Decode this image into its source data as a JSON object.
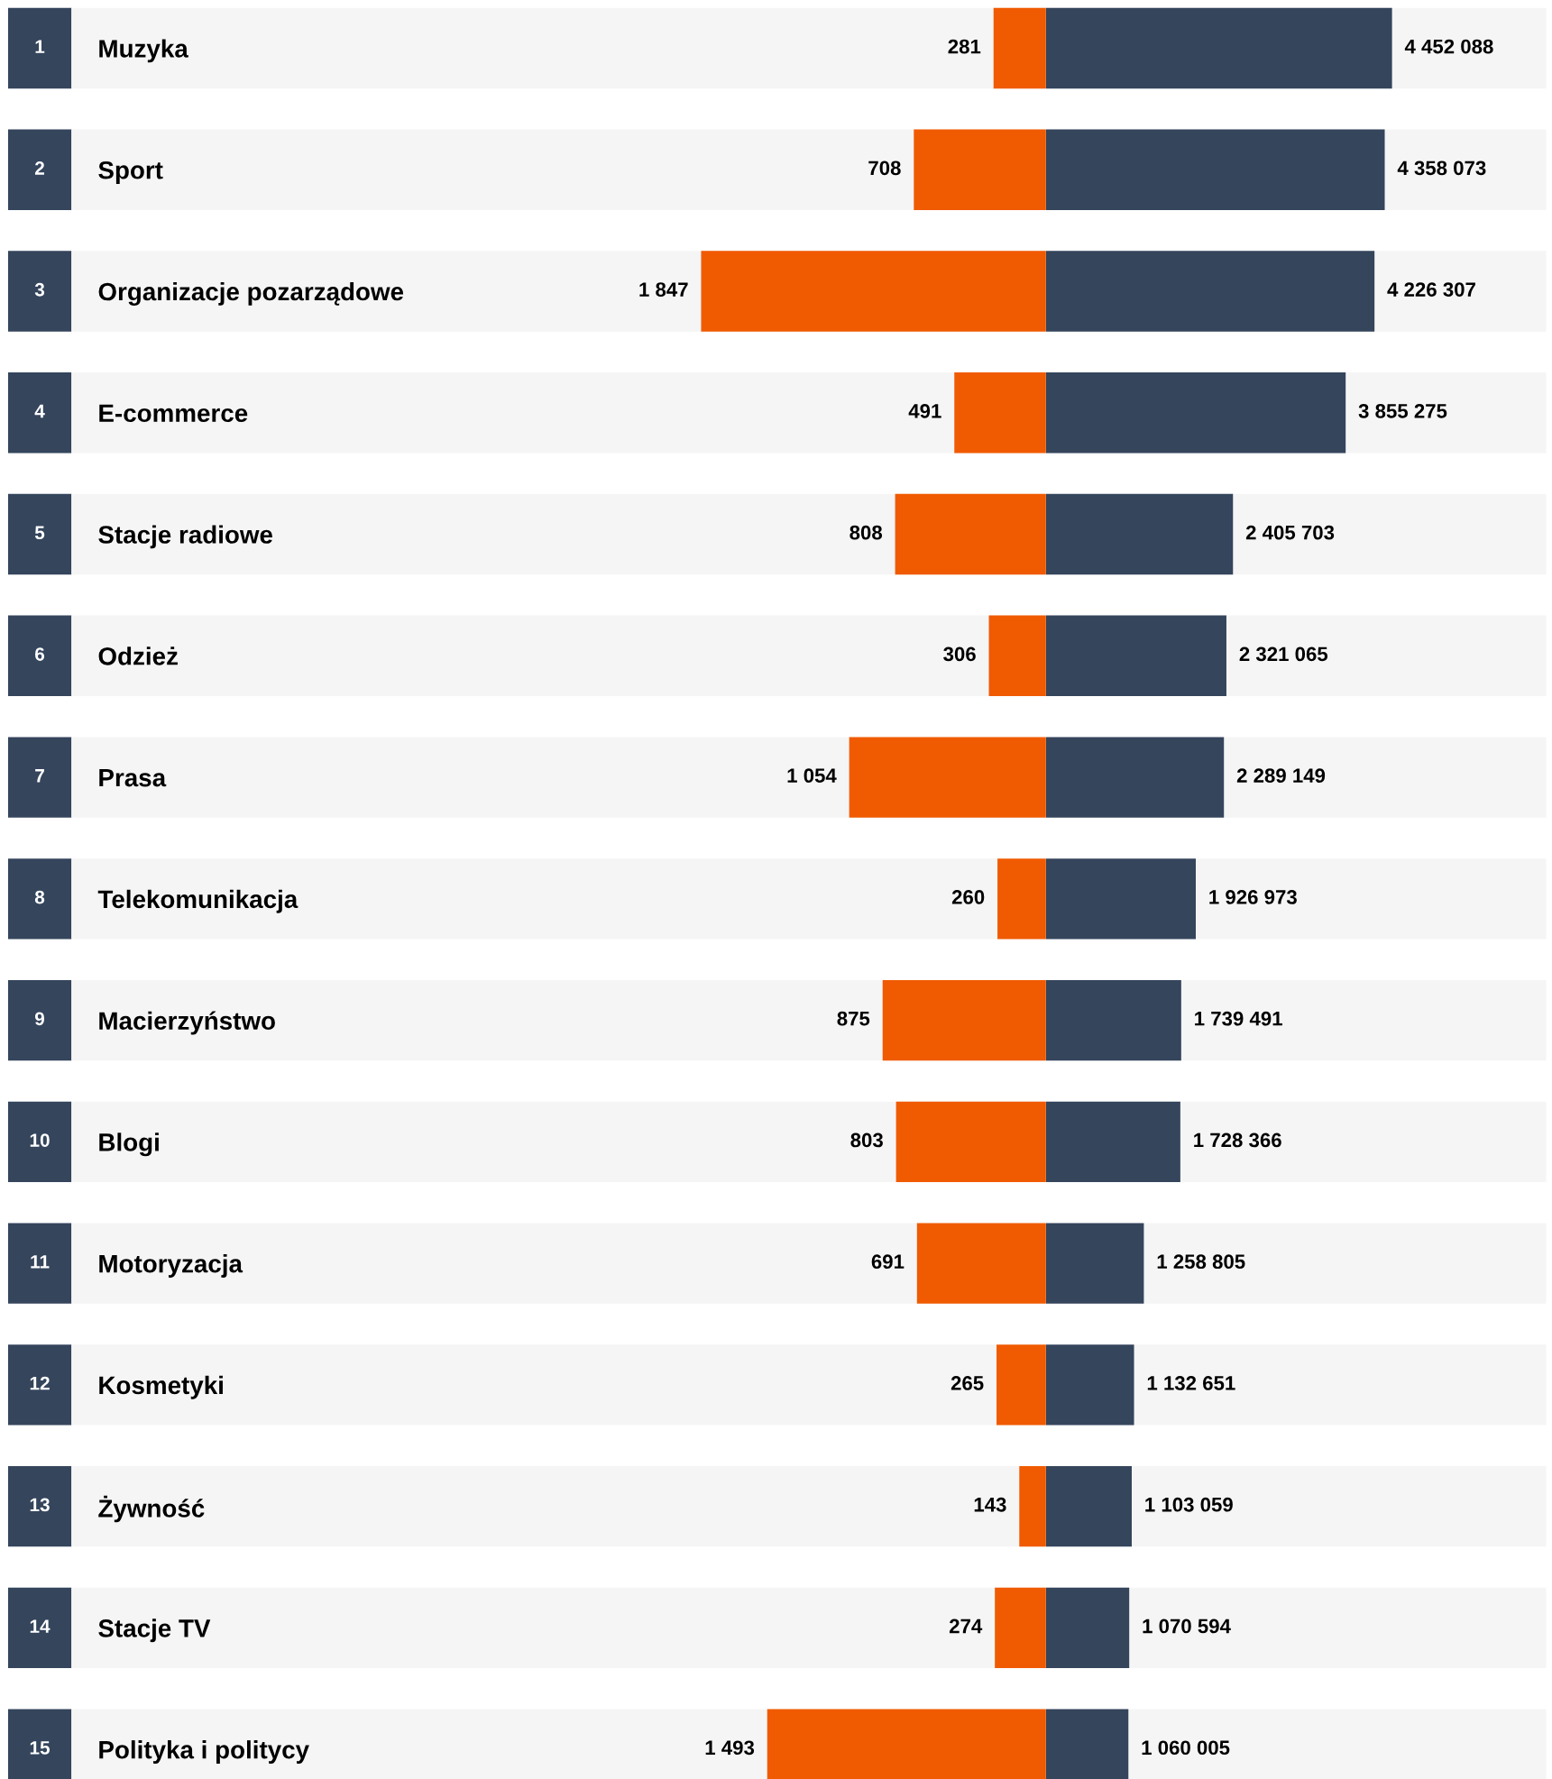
{
  "chart_data": [
    {
      "type": "bar",
      "orientation": "horizontal",
      "tick_labels": "y",
      "categories": [
        "Muzyka",
        "Sport",
        "Organizacje pozarządowe",
        "E-commerce",
        "Stacje radiowe",
        "Odzież",
        "Prasa",
        "Telekomunikacja",
        "Macierzyństwo",
        "Blogi",
        "Motoryzacja",
        "Kosmetyki",
        "Żywność",
        "Stacje TV",
        "Polityka i politycy"
      ],
      "annotations": [
        "1",
        "2",
        "3",
        "4",
        "5",
        "6",
        "7",
        "8",
        "9",
        "10",
        "11",
        "12",
        "13",
        "14",
        "15"
      ],
      "legend": false,
      "series": [
        {
          "color": "#f05a00",
          "values": [
            281,
            708,
            1847,
            491,
            808,
            306,
            1054,
            260,
            875,
            803,
            691,
            265,
            143,
            274,
            1493
          ],
          "value_labels": [
            "281",
            "708",
            "1 847",
            "491",
            "808",
            "306",
            "1 054",
            "260",
            "875",
            "803",
            "691",
            "265",
            "143",
            "274",
            "1 493"
          ]
        }
      ]
    },
    {
      "type": "bar",
      "orientation": "horizontal",
      "tick_labels": false,
      "legend": false,
      "categories": [
        null,
        null,
        null,
        null,
        null,
        null,
        null,
        null,
        null,
        null,
        null,
        null,
        null,
        null,
        null
      ],
      "series": [
        {
          "color": "#34455c",
          "values": [
            4452088,
            4358073,
            4226307,
            3855275,
            2405703,
            2321065,
            2289149,
            1926973,
            1739491,
            1728366,
            1258805,
            1132651,
            1103059,
            1070594,
            1060005
          ],
          "value_labels": [
            "4 452 088",
            "4 358 073",
            "4 226 307",
            "3 855 275",
            "2 405 703",
            "2 321 065",
            "2 289 149",
            "1 926 973",
            "1 739 491",
            "1 728 366",
            "1 258 805",
            "1 132 651",
            "1 103 059",
            "1 070 594",
            "1 060 005"
          ]
        }
      ]
    }
  ]
}
